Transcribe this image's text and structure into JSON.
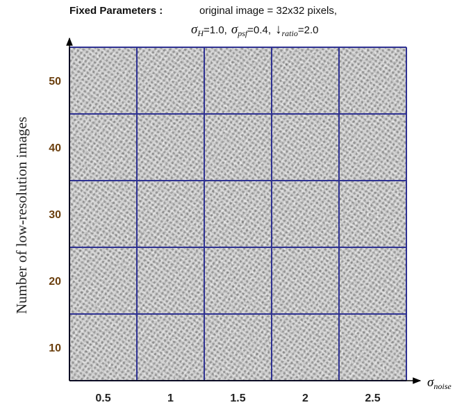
{
  "header": {
    "label": "Fixed Parameters :",
    "line1": "original image = 32x32 pixels,",
    "params": [
      {
        "symbol": "σ",
        "sub": "H",
        "value": "=1.0,"
      },
      {
        "symbol": "σ",
        "sub": "psf",
        "value": "=0.4,"
      },
      {
        "symbol": "↓",
        "sub": "ratio",
        "value": "=2.0"
      }
    ]
  },
  "y_axis": {
    "title": "Number of low-resolution images",
    "labels": [
      "50",
      "40",
      "30",
      "20",
      "10"
    ]
  },
  "x_axis": {
    "symbol": "σ",
    "sub": "noise",
    "labels": [
      "0.5",
      "1",
      "1.5",
      "2",
      "2.5"
    ]
  }
}
